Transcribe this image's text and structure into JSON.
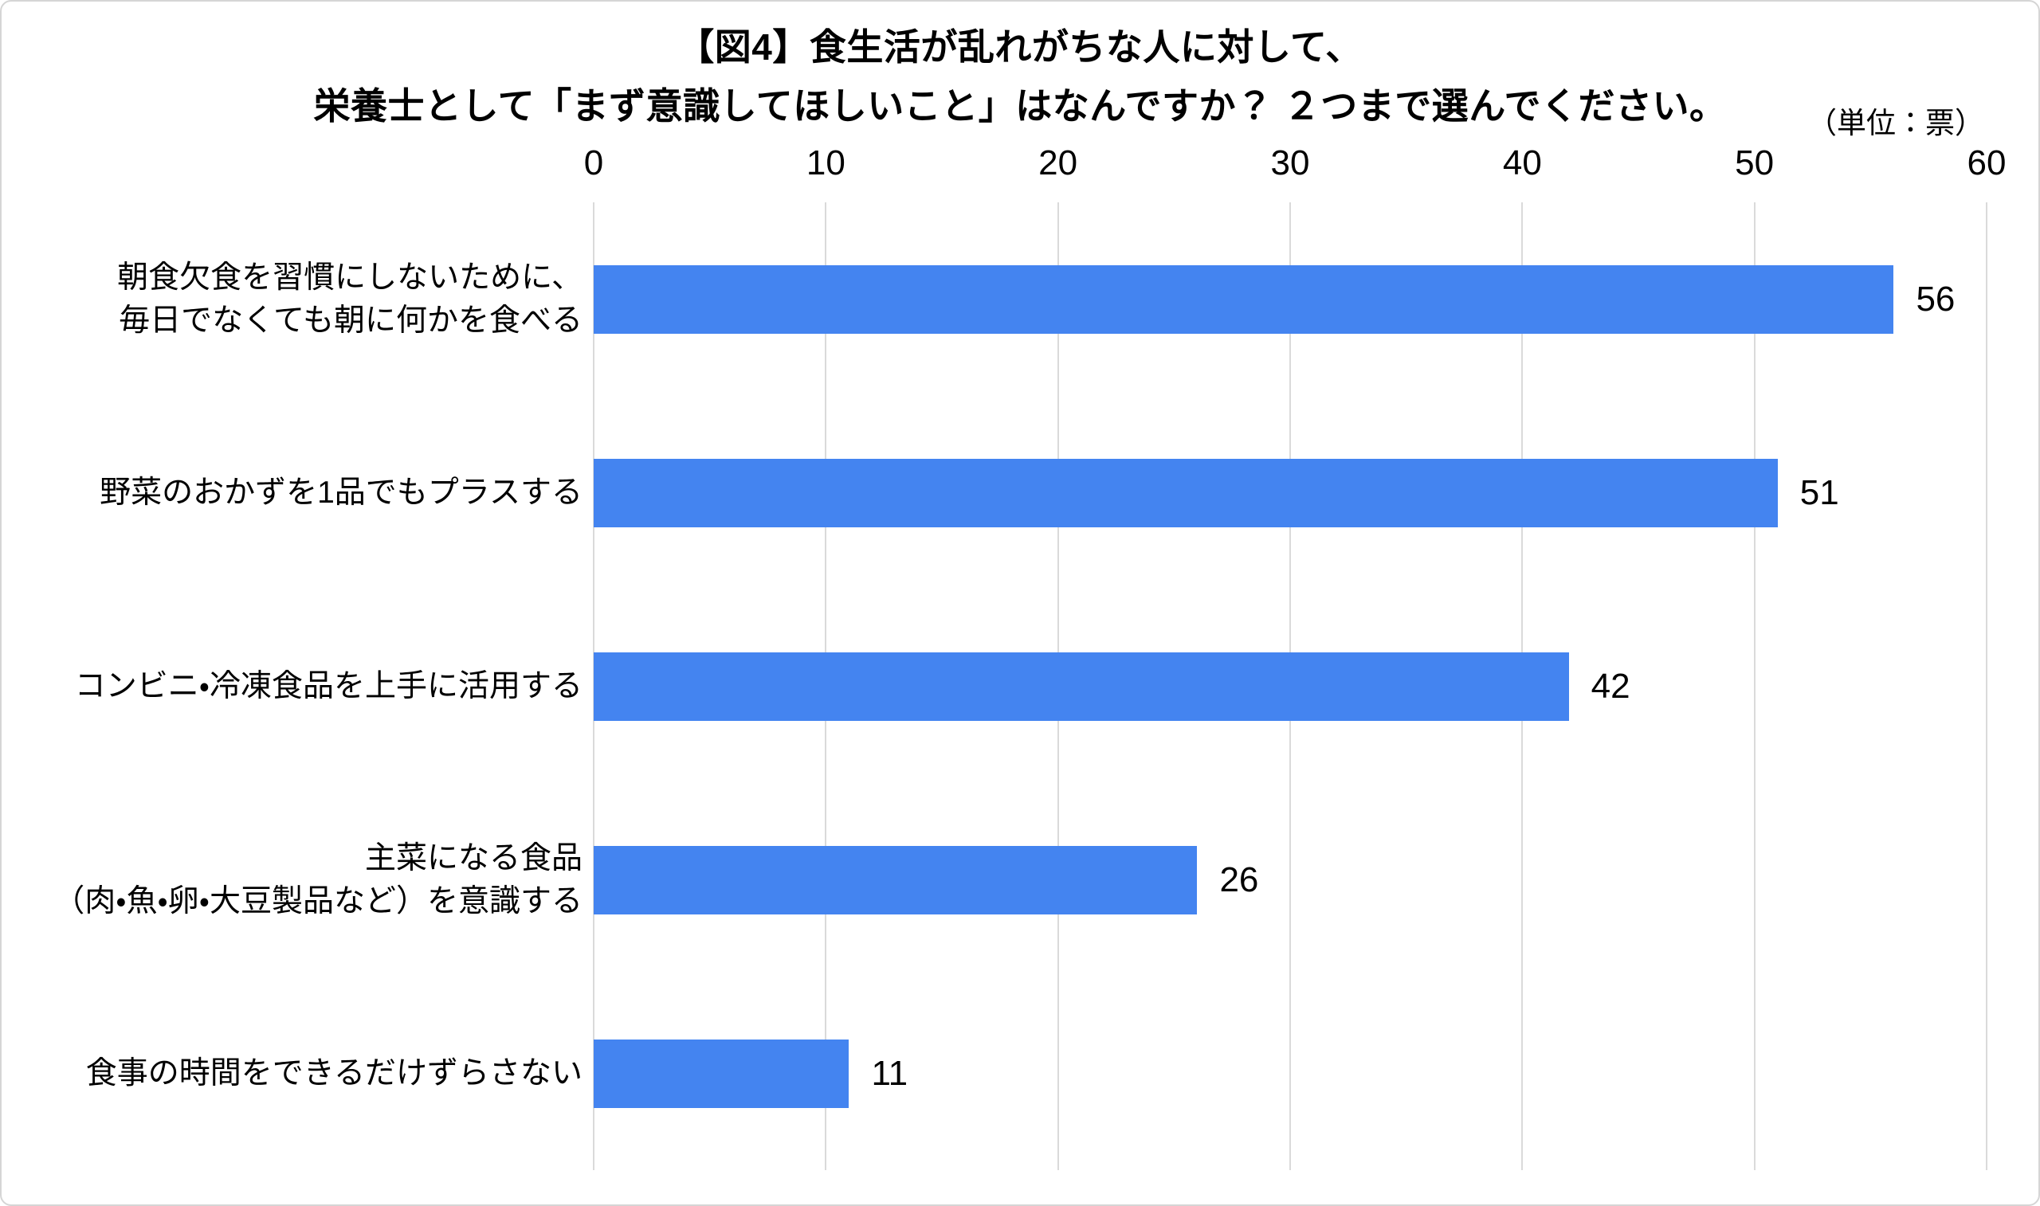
{
  "title": {
    "line1": "【図4】食生活が乱れがちな人に対して、",
    "line2": "栄養士として「まず意識してほしいこと」はなんですか？ ２つまで選んでください。"
  },
  "unit_label": "（単位：票）",
  "chart_data": {
    "type": "bar",
    "orientation": "horizontal",
    "title": "【図4】食生活が乱れがちな人に対して、栄養士として「まず意識してほしいこと」はなんですか？ ２つまで選んでください。",
    "unit": "（単位：票）",
    "categories": [
      "朝食欠食を習慣にしないために、\n毎日でなくても朝に何かを食べる",
      "野菜のおかずを1品でもプラスする",
      "コンビニ・冷凍食品を上手に活用する",
      "主菜になる食品\n（肉・魚・卵・大豆製品など）を意識する",
      "食事の時間をできるだけずらさない"
    ],
    "values": [
      56,
      51,
      42,
      26,
      11
    ],
    "xlabel": "",
    "ylabel": "",
    "xlim": [
      0,
      60
    ],
    "xticks": [
      0,
      10,
      20,
      30,
      40,
      50,
      60
    ],
    "grid": "vertical-only",
    "legend_position": "none",
    "data_labels": "outside-end",
    "bar_color": "#4484F0",
    "gridline_color": "#DADADA",
    "text_color": "#000000",
    "background": "#FFFFFF"
  }
}
